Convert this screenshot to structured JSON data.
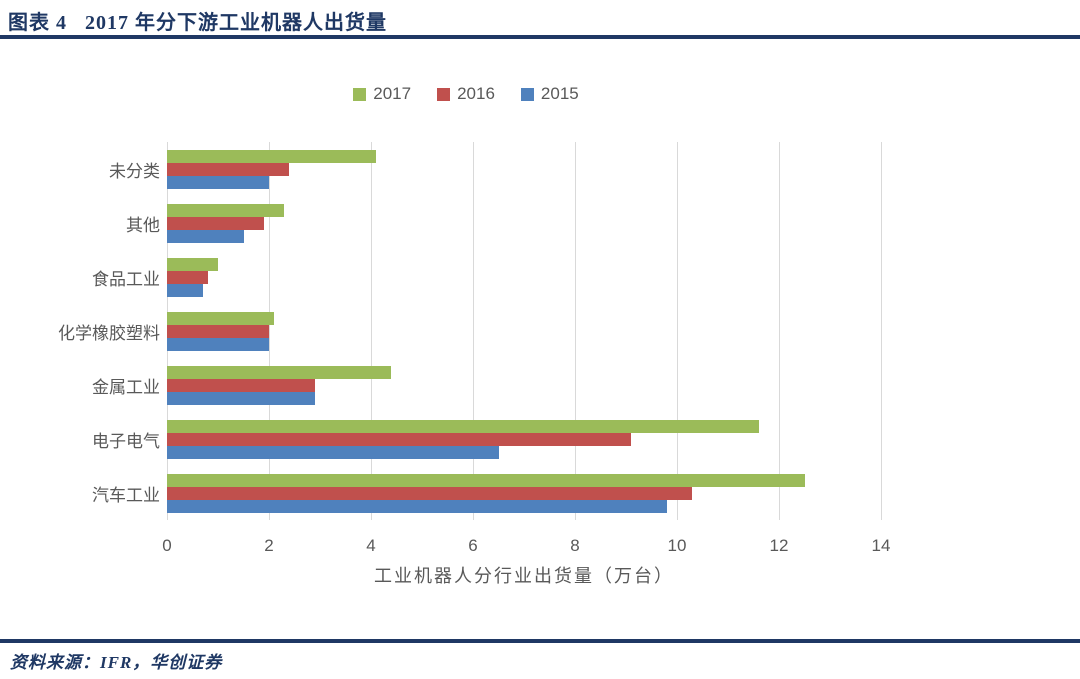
{
  "header": {
    "title": "图表 4   2017 年分下游工业机器人出货量"
  },
  "footer": {
    "source": "资料来源：IFR，华创证券"
  },
  "colors": {
    "accent_navy": "#1F3864",
    "series_2017_green": "#9BBB59",
    "series_2016_red": "#C0504D",
    "series_2015_blue": "#4F81BD",
    "gridline_gray": "#D9D9D9",
    "label_gray": "#595959"
  },
  "chart_data": {
    "type": "bar",
    "orientation": "horizontal",
    "title": "",
    "xlabel": "工业机器人分行业出货量（万台）",
    "ylabel": "",
    "categories": [
      "未分类",
      "其他",
      "食品工业",
      "化学橡胶塑料",
      "金属工业",
      "电子电气",
      "汽车工业"
    ],
    "series": [
      {
        "name": "2017",
        "color": "#9BBB59",
        "values": [
          4.1,
          2.3,
          1.0,
          2.1,
          4.4,
          11.6,
          12.5
        ]
      },
      {
        "name": "2016",
        "color": "#C0504D",
        "values": [
          2.4,
          1.9,
          0.8,
          2.0,
          2.9,
          9.1,
          10.3
        ]
      },
      {
        "name": "2015",
        "color": "#4F81BD",
        "values": [
          2.0,
          1.5,
          0.7,
          2.0,
          2.9,
          6.5,
          9.8
        ]
      }
    ],
    "xlim": [
      0,
      14
    ],
    "xticks": [
      0,
      2,
      4,
      6,
      8,
      10,
      12,
      14
    ],
    "grid": "vertical",
    "legend_position": "top-center",
    "category_order": "top-to-bottom"
  }
}
